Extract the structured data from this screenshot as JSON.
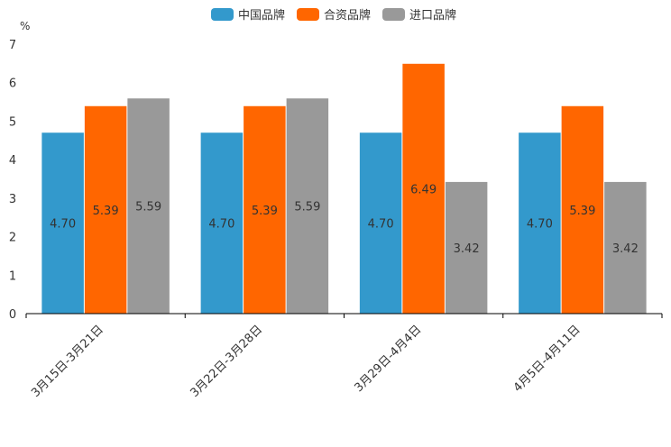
{
  "chart_data": {
    "type": "bar",
    "unit": "%",
    "categories": [
      "3月15日-3月21日",
      "3月22日-3月28日",
      "3月29日-4月4日",
      "4月5日-4月11日"
    ],
    "series": [
      {
        "name": "中国品牌",
        "color": "#3399cc",
        "values": [
          4.7,
          4.7,
          4.7,
          4.7
        ]
      },
      {
        "name": "合资品牌",
        "color": "#ff6600",
        "values": [
          5.39,
          5.39,
          6.49,
          5.39
        ]
      },
      {
        "name": "进口品牌",
        "color": "#999999",
        "values": [
          5.59,
          5.59,
          3.42,
          3.42
        ]
      }
    ],
    "data_labels": [
      [
        "4.70",
        "4.70",
        "4.70",
        "4.70"
      ],
      [
        "5.39",
        "5.39",
        "6.49",
        "5.39"
      ],
      [
        "5.59",
        "5.59",
        "3.42",
        "3.42"
      ]
    ],
    "ylim": [
      0,
      7
    ],
    "yticks": [
      "0",
      "1",
      "2",
      "3",
      "4",
      "5",
      "6",
      "7"
    ],
    "legend_position": "top-center",
    "grid": false
  }
}
